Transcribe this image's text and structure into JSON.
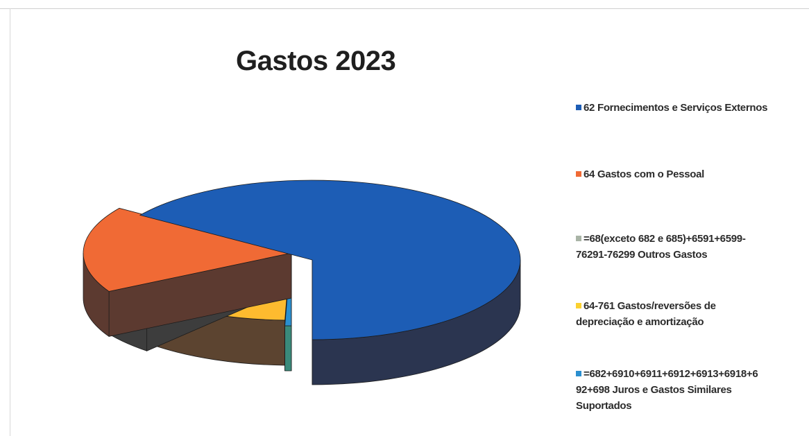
{
  "chart_data": {
    "type": "pie",
    "title": "Gastos 2023",
    "legend_position": "right",
    "three_d": true,
    "categories": [
      "62 Fornecimentos e Serviços Externos",
      "64 Gastos com o Pessoal",
      "=68(exceto 682 e 685)+6591+6599-76291-76299 Outros Gastos",
      "64-761 Gastos/reversões de depreciação e amortização",
      "=682+6910+6911+6912+6913+6918+692+698 Juros e Gastos Similares Suportados"
    ],
    "legend_lines": [
      [
        "62 Fornecimentos e Serviços Externos"
      ],
      [
        "64 Gastos com o Pessoal"
      ],
      [
        "=68(exceto 682 e 685)+6591+6599-",
        "76291-76299 Outros Gastos"
      ],
      [
        "64-761 Gastos/reversões de",
        "depreciação e amortização"
      ],
      [
        "=682+6910+6911+6912+6913+6918+6",
        "92+698 Juros e Gastos Similares",
        "Suportados"
      ]
    ],
    "values": [
      65.5,
      17.5,
      5.5,
      11.0,
      0.5
    ],
    "colors": [
      "#1d5db5",
      "#f06a35",
      "#b4b4b4",
      "#fdbb2f",
      "#2a8fcf"
    ],
    "side_colors": [
      "#2b3550",
      "#5c3a30",
      "#3d3d3d",
      "#5c4430",
      "#3a8a7a"
    ],
    "swatch_colors": [
      "#1d5db5",
      "#f06a35",
      "#a9b4a6",
      "#fbd130",
      "#2a8fcf"
    ]
  }
}
